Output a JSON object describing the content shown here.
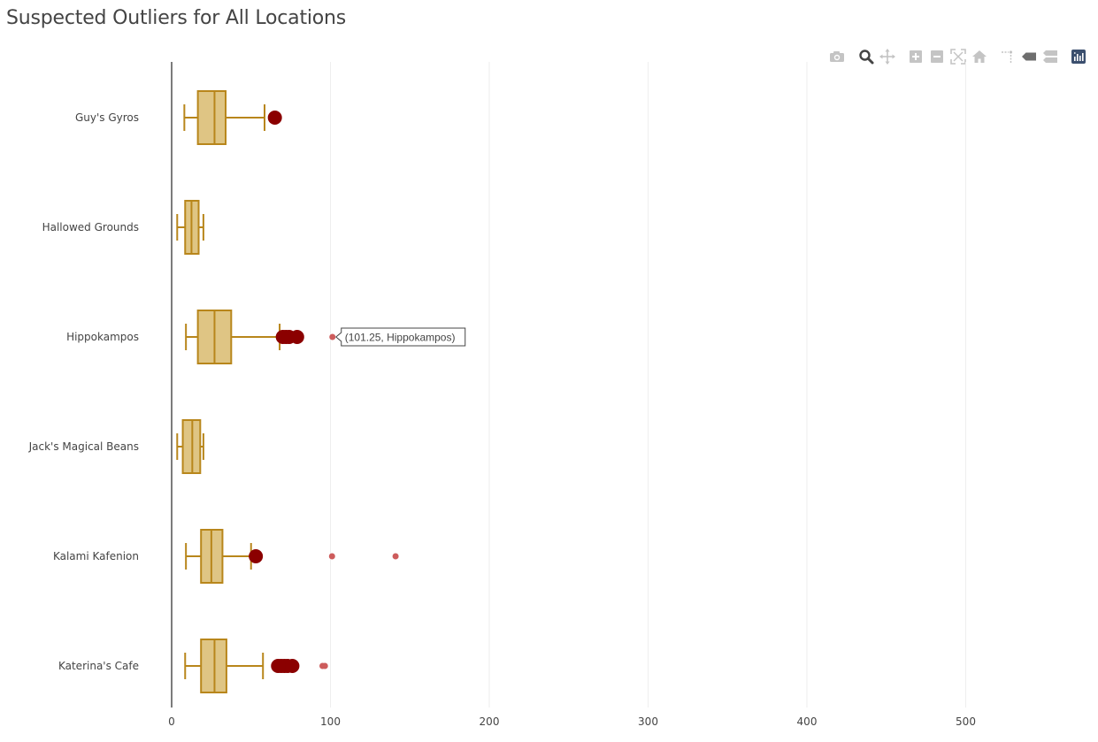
{
  "chart_data": {
    "type": "box",
    "orientation": "horizontal",
    "title": "Suspected Outliers for All Locations",
    "xlim": [
      0,
      560
    ],
    "xticks": [
      0,
      100,
      200,
      300,
      400,
      500
    ],
    "grid": true,
    "categories": [
      "Guy's Gyros",
      "Hallowed Grounds",
      "Hippokampos",
      "Jack's Magical Beans",
      "Kalami Kafenion",
      "Katerina's Cafe"
    ],
    "boxes": [
      {
        "category": "Guy's Gyros",
        "whisker_low": 8,
        "q1": 16.5,
        "median": 27,
        "q3": 34,
        "whisker_high": 58.5,
        "suspected_outliers": [
          65
        ],
        "outliers": []
      },
      {
        "category": "Hallowed Grounds",
        "whisker_low": 3.5,
        "q1": 8.5,
        "median": 12.5,
        "q3": 17,
        "whisker_high": 20,
        "suspected_outliers": [],
        "outliers": []
      },
      {
        "category": "Hippokampos",
        "whisker_low": 9,
        "q1": 16.5,
        "median": 27,
        "q3": 37.5,
        "whisker_high": 68,
        "suspected_outliers": [
          70,
          72,
          74,
          79
        ],
        "outliers": [
          101.25
        ]
      },
      {
        "category": "Jack's Magical Beans",
        "whisker_low": 3.5,
        "q1": 7,
        "median": 13,
        "q3": 18,
        "whisker_high": 20,
        "suspected_outliers": [],
        "outliers": []
      },
      {
        "category": "Kalami Kafenion",
        "whisker_low": 9,
        "q1": 18.5,
        "median": 25,
        "q3": 32,
        "whisker_high": 50,
        "suspected_outliers": [
          53
        ],
        "outliers": [
          101,
          141
        ]
      },
      {
        "category": "Katerina's Cafe",
        "whisker_low": 8.5,
        "q1": 18.5,
        "median": 27,
        "q3": 34.5,
        "whisker_high": 57.5,
        "suspected_outliers": [
          67,
          69,
          71,
          73,
          76
        ],
        "outliers": [
          95,
          96.5
        ]
      }
    ],
    "colors": {
      "box_line": "#b8861b",
      "box_fill": "#dfc584",
      "suspected_outlier": "#8b0000",
      "outlier": "#cd5c5c",
      "grid": "#eeeeee",
      "zero_line": "#444444"
    },
    "hover": {
      "text": "(101.25, Hippokampos)",
      "x": 101.25,
      "category": "Hippokampos"
    }
  },
  "modebar": {
    "buttons": [
      {
        "name": "camera-icon",
        "title": "Download plot as a png"
      },
      {
        "name": "zoom-icon",
        "title": "Zoom"
      },
      {
        "name": "pan-icon",
        "title": "Pan"
      },
      {
        "name": "zoom-in-icon",
        "title": "Zoom in"
      },
      {
        "name": "zoom-out-icon",
        "title": "Zoom out"
      },
      {
        "name": "autoscale-icon",
        "title": "Autoscale"
      },
      {
        "name": "home-icon",
        "title": "Reset axes"
      },
      {
        "name": "spike-icon",
        "title": "Toggle Spike Lines"
      },
      {
        "name": "hover-closest-icon",
        "title": "Show closest data on hover"
      },
      {
        "name": "hover-compare-icon",
        "title": "Compare data on hover"
      },
      {
        "name": "plotly-logo-icon",
        "title": "Produced with Plotly"
      }
    ]
  }
}
